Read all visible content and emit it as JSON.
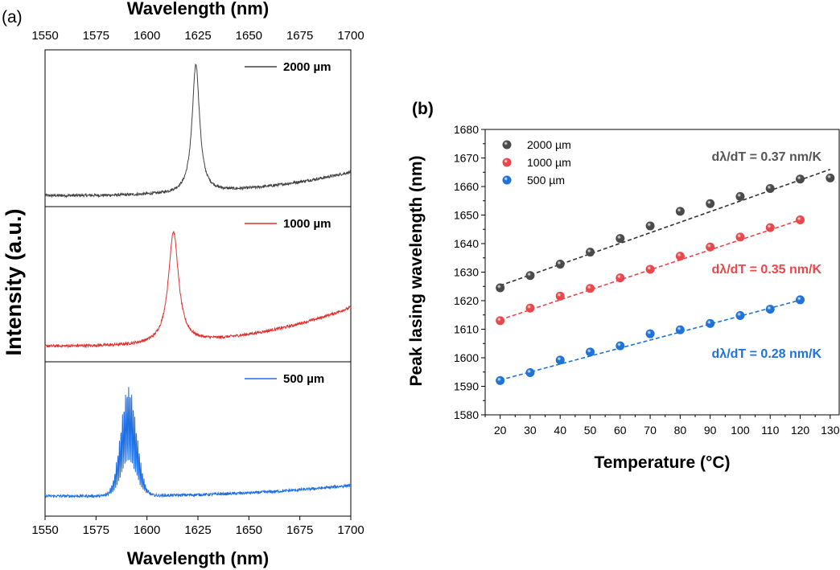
{
  "chart_data": [
    {
      "panel_label": "(a)",
      "type": "line",
      "title": "",
      "xlabel_top": "Wavelength (nm)",
      "xlabel": "Wavelength (nm)",
      "ylabel": "Intensity (a.u.)",
      "xlim": [
        1550,
        1700
      ],
      "x_ticks": [
        "1550",
        "1575",
        "1600",
        "1625",
        "1650",
        "1675",
        "1700"
      ],
      "series": [
        {
          "name": "2000 µm",
          "color": "#404040",
          "peak_nm": 1624,
          "linewidth_nm": 2.2,
          "peak_rel": 0.82,
          "baseline_start": 0.0,
          "baseline_end": 0.15,
          "modulated": false
        },
        {
          "name": "1000 µm",
          "color": "#e03030",
          "peak_nm": 1613,
          "linewidth_nm": 3.0,
          "peak_rel": 0.72,
          "baseline_start": 0.03,
          "baseline_end": 0.28,
          "modulated": false
        },
        {
          "name": "500 µm",
          "color": "#1f6fe0",
          "peak_nm": 1591,
          "linewidth_nm": 5.5,
          "peak_rel": 0.7,
          "baseline_start": 0.06,
          "baseline_end": 0.13,
          "modulated": true
        }
      ]
    },
    {
      "panel_label": "(b)",
      "type": "scatter",
      "title": "",
      "xlabel": "Temperature (°C)",
      "ylabel": "Peak lasing wavelength (nm)",
      "xlim": [
        15,
        133
      ],
      "ylim": [
        1580,
        1680
      ],
      "x_ticks": [
        "20",
        "30",
        "40",
        "50",
        "60",
        "70",
        "80",
        "90",
        "100",
        "110",
        "120",
        "130"
      ],
      "y_ticks": [
        "1580",
        "1590",
        "1600",
        "1610",
        "1620",
        "1630",
        "1640",
        "1650",
        "1660",
        "1670",
        "1680"
      ],
      "legend_position": "top-left",
      "series": [
        {
          "name": "2000 µm",
          "color": "#4a4a4a",
          "fit_color": "#333333",
          "annotation": "dλ/dT = 0.37 nm/K",
          "annotation_color": "#555555",
          "x": [
            20,
            30,
            40,
            50,
            60,
            70,
            80,
            90,
            100,
            110,
            120,
            130
          ],
          "y": [
            1624.5,
            1628.8,
            1632.8,
            1637.0,
            1641.8,
            1646.2,
            1651.3,
            1654.0,
            1656.5,
            1659.3,
            1662.6,
            1663.0
          ],
          "fit": {
            "slope": 0.37,
            "intercept": 1617.9,
            "x_range": [
              20,
              130
            ]
          }
        },
        {
          "name": "1000 µm",
          "color": "#e8474b",
          "fit_color": "#e8474b",
          "annotation": "dλ/dT = 0.35 nm/K",
          "annotation_color": "#e8474b",
          "x": [
            20,
            30,
            40,
            50,
            60,
            70,
            80,
            90,
            100,
            110,
            120
          ],
          "y": [
            1613.0,
            1617.4,
            1621.6,
            1624.3,
            1628.0,
            1631.0,
            1635.6,
            1638.8,
            1642.3,
            1645.6,
            1648.3
          ],
          "fit": {
            "slope": 0.35,
            "intercept": 1606.3,
            "x_range": [
              20,
              120
            ]
          }
        },
        {
          "name": "500 µm",
          "color": "#1f72d6",
          "fit_color": "#1f72d6",
          "annotation": "dλ/dT = 0.28 nm/K",
          "annotation_color": "#1f72d6",
          "x": [
            20,
            30,
            40,
            50,
            60,
            70,
            80,
            90,
            100,
            110,
            120
          ],
          "y": [
            1592.0,
            1594.8,
            1599.2,
            1602.0,
            1604.2,
            1608.4,
            1609.8,
            1612.0,
            1614.8,
            1617.0,
            1620.3
          ],
          "fit": {
            "slope": 0.28,
            "intercept": 1586.6,
            "x_range": [
              20,
              120
            ]
          }
        }
      ]
    }
  ]
}
